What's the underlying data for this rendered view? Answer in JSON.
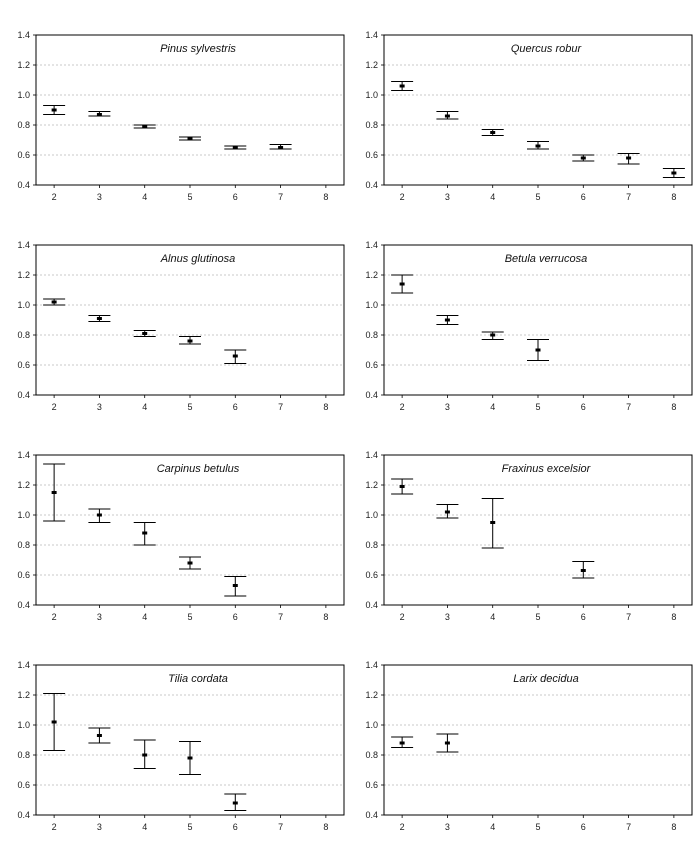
{
  "figure": {
    "colors": {
      "frame": "#000000",
      "grid": "#b8b8b8",
      "mark": "#000000",
      "text": "#222222"
    }
  },
  "chart_data": [
    {
      "type": "scatter",
      "title": "Pinus sylvestris",
      "xlabel": "",
      "ylabel": "",
      "xticks": [
        2,
        3,
        4,
        5,
        6,
        7,
        8
      ],
      "xlim": [
        1.6,
        8.4
      ],
      "ylim": [
        0.4,
        1.4
      ],
      "yticks": [
        "0.4",
        "0.6",
        "0.8",
        "1.0",
        "1.2",
        "1.4"
      ],
      "grid": true,
      "points": [
        {
          "x": 2,
          "y": 0.9,
          "low": 0.87,
          "high": 0.93
        },
        {
          "x": 3,
          "y": 0.87,
          "low": 0.86,
          "high": 0.89
        },
        {
          "x": 4,
          "y": 0.79,
          "low": 0.78,
          "high": 0.8
        },
        {
          "x": 5,
          "y": 0.71,
          "low": 0.7,
          "high": 0.72
        },
        {
          "x": 6,
          "y": 0.65,
          "low": 0.64,
          "high": 0.66
        },
        {
          "x": 7,
          "y": 0.65,
          "low": 0.64,
          "high": 0.67
        }
      ]
    },
    {
      "type": "scatter",
      "title": "Quercus robur",
      "xlabel": "",
      "ylabel": "",
      "xticks": [
        2,
        3,
        4,
        5,
        6,
        7,
        8
      ],
      "xlim": [
        1.6,
        8.4
      ],
      "ylim": [
        0.4,
        1.4
      ],
      "yticks": [
        "0.4",
        "0.6",
        "0.8",
        "1.0",
        "1.2",
        "1.4"
      ],
      "grid": true,
      "points": [
        {
          "x": 2,
          "y": 1.06,
          "low": 1.03,
          "high": 1.09
        },
        {
          "x": 3,
          "y": 0.86,
          "low": 0.84,
          "high": 0.89
        },
        {
          "x": 4,
          "y": 0.75,
          "low": 0.73,
          "high": 0.77
        },
        {
          "x": 5,
          "y": 0.66,
          "low": 0.64,
          "high": 0.69
        },
        {
          "x": 6,
          "y": 0.58,
          "low": 0.56,
          "high": 0.6
        },
        {
          "x": 7,
          "y": 0.58,
          "low": 0.54,
          "high": 0.61
        },
        {
          "x": 8,
          "y": 0.48,
          "low": 0.45,
          "high": 0.51
        }
      ]
    },
    {
      "type": "scatter",
      "title": "Alnus glutinosa",
      "xlabel": "",
      "ylabel": "",
      "xticks": [
        2,
        3,
        4,
        5,
        6,
        7,
        8
      ],
      "xlim": [
        1.6,
        8.4
      ],
      "ylim": [
        0.4,
        1.4
      ],
      "yticks": [
        "0.4",
        "0.6",
        "0.8",
        "1.0",
        "1.2",
        "1.4"
      ],
      "grid": true,
      "points": [
        {
          "x": 2,
          "y": 1.02,
          "low": 1.0,
          "high": 1.04
        },
        {
          "x": 3,
          "y": 0.91,
          "low": 0.89,
          "high": 0.93
        },
        {
          "x": 4,
          "y": 0.81,
          "low": 0.79,
          "high": 0.83
        },
        {
          "x": 5,
          "y": 0.76,
          "low": 0.74,
          "high": 0.79
        },
        {
          "x": 6,
          "y": 0.66,
          "low": 0.61,
          "high": 0.7
        }
      ]
    },
    {
      "type": "scatter",
      "title": "Betula verrucosa",
      "xlabel": "",
      "ylabel": "",
      "xticks": [
        2,
        3,
        4,
        5,
        6,
        7,
        8
      ],
      "xlim": [
        1.6,
        8.4
      ],
      "ylim": [
        0.4,
        1.4
      ],
      "yticks": [
        "0.4",
        "0.6",
        "0.8",
        "1.0",
        "1.2",
        "1.4"
      ],
      "grid": true,
      "points": [
        {
          "x": 2,
          "y": 1.14,
          "low": 1.08,
          "high": 1.2
        },
        {
          "x": 3,
          "y": 0.9,
          "low": 0.87,
          "high": 0.93
        },
        {
          "x": 4,
          "y": 0.8,
          "low": 0.77,
          "high": 0.82
        },
        {
          "x": 5,
          "y": 0.7,
          "low": 0.63,
          "high": 0.77
        }
      ]
    },
    {
      "type": "scatter",
      "title": "Carpinus betulus",
      "xlabel": "",
      "ylabel": "",
      "xticks": [
        2,
        3,
        4,
        5,
        6,
        7,
        8
      ],
      "xlim": [
        1.6,
        8.4
      ],
      "ylim": [
        0.4,
        1.4
      ],
      "yticks": [
        "0.4",
        "0.6",
        "0.8",
        "1.0",
        "1.2",
        "1.4"
      ],
      "grid": true,
      "points": [
        {
          "x": 2,
          "y": 1.15,
          "low": 0.96,
          "high": 1.34
        },
        {
          "x": 3,
          "y": 1.0,
          "low": 0.95,
          "high": 1.04
        },
        {
          "x": 4,
          "y": 0.88,
          "low": 0.8,
          "high": 0.95
        },
        {
          "x": 5,
          "y": 0.68,
          "low": 0.64,
          "high": 0.72
        },
        {
          "x": 6,
          "y": 0.53,
          "low": 0.46,
          "high": 0.59
        }
      ]
    },
    {
      "type": "scatter",
      "title": "Fraxinus excelsior",
      "xlabel": "",
      "ylabel": "",
      "xticks": [
        2,
        3,
        4,
        5,
        6,
        7,
        8
      ],
      "xlim": [
        1.6,
        8.4
      ],
      "ylim": [
        0.4,
        1.4
      ],
      "yticks": [
        "0.4",
        "0.6",
        "0.8",
        "1.0",
        "1.2",
        "1.4"
      ],
      "grid": true,
      "points": [
        {
          "x": 2,
          "y": 1.19,
          "low": 1.14,
          "high": 1.24
        },
        {
          "x": 3,
          "y": 1.02,
          "low": 0.98,
          "high": 1.07
        },
        {
          "x": 4,
          "y": 0.95,
          "low": 0.78,
          "high": 1.11
        },
        {
          "x": 6,
          "y": 0.63,
          "low": 0.58,
          "high": 0.69
        }
      ]
    },
    {
      "type": "scatter",
      "title": "Tilia cordata",
      "xlabel": "",
      "ylabel": "",
      "xticks": [
        2,
        3,
        4,
        5,
        6,
        7,
        8
      ],
      "xlim": [
        1.6,
        8.4
      ],
      "ylim": [
        0.4,
        1.4
      ],
      "yticks": [
        "0.4",
        "0.6",
        "0.8",
        "1.0",
        "1.2",
        "1.4"
      ],
      "grid": true,
      "points": [
        {
          "x": 2,
          "y": 1.02,
          "low": 0.83,
          "high": 1.21
        },
        {
          "x": 3,
          "y": 0.93,
          "low": 0.88,
          "high": 0.98
        },
        {
          "x": 4,
          "y": 0.8,
          "low": 0.71,
          "high": 0.9
        },
        {
          "x": 5,
          "y": 0.78,
          "low": 0.67,
          "high": 0.89
        },
        {
          "x": 6,
          "y": 0.48,
          "low": 0.43,
          "high": 0.54
        }
      ]
    },
    {
      "type": "scatter",
      "title": "Larix decidua",
      "xlabel": "",
      "ylabel": "",
      "xticks": [
        2,
        3,
        4,
        5,
        6,
        7,
        8
      ],
      "xlim": [
        1.6,
        8.4
      ],
      "ylim": [
        0.4,
        1.4
      ],
      "yticks": [
        "0.4",
        "0.6",
        "0.8",
        "1.0",
        "1.2",
        "1.4"
      ],
      "grid": true,
      "points": [
        {
          "x": 2,
          "y": 0.88,
          "low": 0.85,
          "high": 0.92
        },
        {
          "x": 3,
          "y": 0.88,
          "low": 0.82,
          "high": 0.94
        }
      ]
    }
  ]
}
